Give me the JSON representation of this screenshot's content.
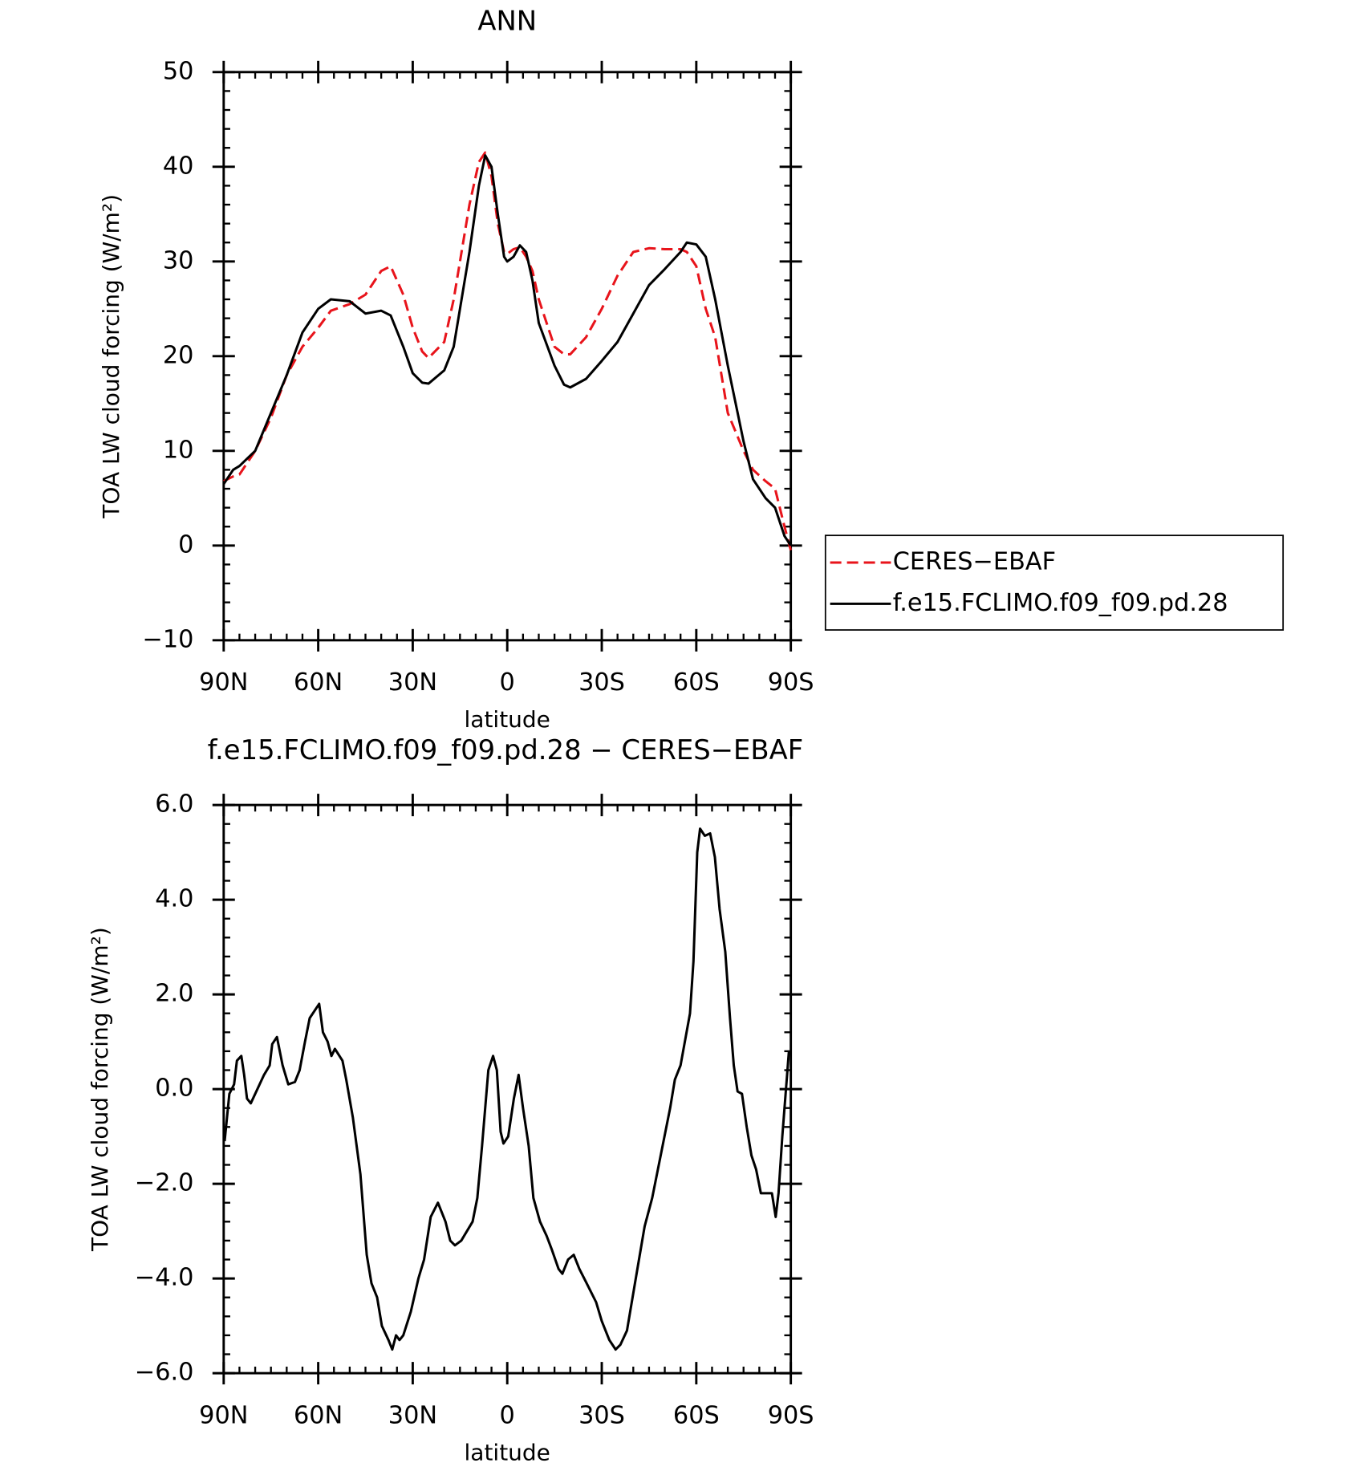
{
  "chart_data": [
    {
      "type": "line",
      "title": "ANN",
      "xlabel": "latitude",
      "ylabel": "TOA LW cloud forcing (W/m²)",
      "legend": "right",
      "x": [
        90,
        87,
        85,
        80,
        75,
        70,
        65,
        60,
        56,
        50,
        45,
        40,
        37,
        33,
        30,
        27,
        25,
        20,
        17,
        15,
        12,
        9,
        7,
        5,
        3,
        1,
        0,
        -2,
        -4,
        -6,
        -8,
        -10,
        -15,
        -18,
        -20,
        -25,
        -30,
        -35,
        -40,
        -45,
        -50,
        -55,
        -57,
        -60,
        -63,
        -66,
        -70,
        -75,
        -78,
        -82,
        -85,
        -88,
        -90
      ],
      "xlim": [
        90,
        -90
      ],
      "xticks": [
        {
          "value": 90,
          "label": "90N"
        },
        {
          "value": 60,
          "label": "60N"
        },
        {
          "value": 30,
          "label": "30N"
        },
        0,
        {
          "value": -30,
          "label": "30S"
        },
        {
          "value": -60,
          "label": "60S"
        },
        {
          "value": -90,
          "label": "90S"
        }
      ],
      "ylim": [
        -10,
        50
      ],
      "yticks": [
        {
          "value": -10,
          "label": "−10"
        },
        0,
        10,
        20,
        30,
        40,
        50
      ],
      "series": [
        {
          "name": "CERES−EBAF",
          "color": "#e8141b",
          "dashed": true,
          "values": [
            6.8,
            7.3,
            7.5,
            10,
            13.5,
            18,
            21,
            23,
            24.8,
            25.5,
            26.5,
            29,
            29.5,
            26.5,
            23,
            20.5,
            19.8,
            21.5,
            26,
            30,
            36,
            40.5,
            41.5,
            39,
            34,
            31,
            30.8,
            31.3,
            31.5,
            30.5,
            29,
            26,
            21,
            20.2,
            20.2,
            22,
            25,
            28.5,
            31,
            31.4,
            31.3,
            31.3,
            31,
            29.5,
            25,
            22,
            14,
            10,
            8,
            6.8,
            6,
            2,
            -0.5
          ]
        },
        {
          "name": "f.e15.FCLIMO.f09_f09.pd.28",
          "color": "#000000",
          "dashed": false,
          "values": [
            6.5,
            8,
            8.4,
            10,
            14,
            18,
            22.5,
            25,
            26,
            25.8,
            24.5,
            24.8,
            24.3,
            21,
            18.2,
            17.2,
            17.1,
            18.5,
            21,
            25,
            31,
            38,
            41.2,
            40,
            35,
            30.5,
            30,
            30.5,
            31.7,
            31,
            28,
            23.5,
            19,
            17,
            16.7,
            17.6,
            19.5,
            21.5,
            24.5,
            27.5,
            29.2,
            31,
            32,
            31.8,
            30.5,
            26,
            19,
            11,
            7,
            5,
            4,
            1,
            0
          ]
        }
      ]
    },
    {
      "type": "line",
      "title": "f.e15.FCLIMO.f09_f09.pd.28 − CERES−EBAF",
      "xlabel": "latitude",
      "ylabel": "TOA LW cloud forcing (W/m²)",
      "x": [
        89.7,
        88.2,
        86.7,
        85.8,
        84.4,
        83.5,
        82.6,
        81.4,
        79.3,
        77.2,
        75.4,
        74.6,
        73.1,
        71.3,
        69.5,
        67.4,
        65.9,
        64.2,
        62.7,
        59.7,
        58.5,
        57,
        55.8,
        54.7,
        52.3,
        51.1,
        49,
        46.6,
        44.6,
        43.1,
        41.3,
        39.8,
        37.7,
        36.5,
        35.3,
        34.2,
        33,
        30.6,
        28.2,
        26.4,
        24.3,
        22,
        19.6,
        18.1,
        16.6,
        14.6,
        11,
        9.5,
        8,
        6,
        4.5,
        3.3,
        2.1,
        1.2,
        -0.3,
        -2.1,
        -3.6,
        -5,
        -6.8,
        -8.3,
        -10.4,
        -12.5,
        -14.2,
        -16.3,
        -17.5,
        -19.3,
        -21.1,
        -22.9,
        -25.2,
        -28.2,
        -30,
        -32.4,
        -34.4,
        -35.9,
        -38,
        -41.3,
        -43.6,
        -46,
        -49,
        -51.7,
        -53.2,
        -55,
        -58,
        -59.1,
        -60.3,
        -61.2,
        -62.7,
        -64.4,
        -65.9,
        -67.4,
        -69.2,
        -70.7,
        -71.9,
        -73.1,
        -74.5,
        -76,
        -77.5,
        -79,
        -80.5,
        -82.6,
        -84,
        -85.2,
        -86.1,
        -87.3,
        -89.4
      ],
      "values": [
        -1.1,
        -0.1,
        0.1,
        0.6,
        0.7,
        0.3,
        -0.2,
        -0.3,
        0,
        0.3,
        0.5,
        0.95,
        1.1,
        0.5,
        0.1,
        0.15,
        0.4,
        1,
        1.5,
        1.8,
        1.2,
        1,
        0.7,
        0.85,
        0.6,
        0.2,
        -0.6,
        -1.8,
        -3.5,
        -4.1,
        -4.4,
        -5,
        -5.3,
        -5.5,
        -5.2,
        -5.3,
        -5.2,
        -4.7,
        -4,
        -3.6,
        -2.7,
        -2.4,
        -2.8,
        -3.2,
        -3.3,
        -3.2,
        -2.8,
        -2.3,
        -1.2,
        0.4,
        0.7,
        0.4,
        -0.9,
        -1.15,
        -1,
        -0.2,
        0.3,
        -0.4,
        -1.2,
        -2.3,
        -2.8,
        -3.1,
        -3.4,
        -3.8,
        -3.9,
        -3.6,
        -3.5,
        -3.8,
        -4.1,
        -4.5,
        -4.9,
        -5.3,
        -5.5,
        -5.4,
        -5.1,
        -3.8,
        -2.9,
        -2.3,
        -1.3,
        -0.4,
        0.2,
        0.5,
        1.6,
        2.7,
        5,
        5.5,
        5.35,
        5.4,
        4.9,
        3.8,
        2.9,
        1.5,
        0.5,
        -0.05,
        -0.1,
        -0.8,
        -1.4,
        -1.7,
        -2.2,
        -2.2,
        -2.2,
        -2.7,
        -2.2,
        -1,
        0.8
      ],
      "color": "#000000",
      "xlim": [
        90,
        -90
      ],
      "xticks": [
        {
          "value": 90,
          "label": "90N"
        },
        {
          "value": 60,
          "label": "60N"
        },
        {
          "value": 30,
          "label": "30N"
        },
        0,
        {
          "value": -30,
          "label": "30S"
        },
        {
          "value": -60,
          "label": "60S"
        },
        {
          "value": -90,
          "label": "90S"
        }
      ],
      "ylim": [
        -6,
        6
      ],
      "yticks": [
        {
          "value": -6,
          "label": "−6.0"
        },
        {
          "value": -4,
          "label": "−4.0"
        },
        {
          "value": -2,
          "label": "−2.0"
        },
        {
          "value": 0,
          "label": "0.0"
        },
        {
          "value": 2,
          "label": "2.0"
        },
        {
          "value": 4,
          "label": "4.0"
        },
        {
          "value": 6,
          "label": "6.0"
        }
      ]
    }
  ]
}
